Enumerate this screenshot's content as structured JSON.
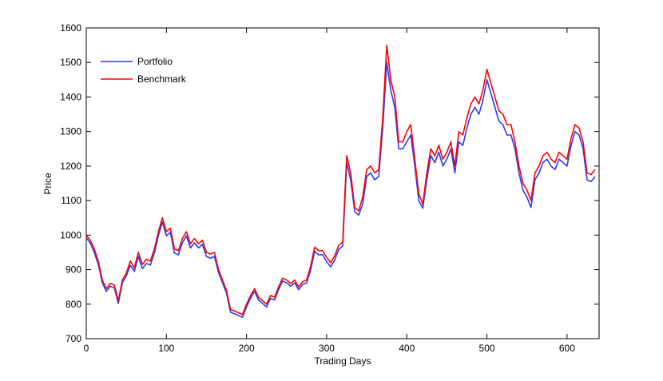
{
  "chart_data": {
    "type": "line",
    "xlabel": "Trading Days",
    "ylabel": "Price",
    "xlim": [
      0,
      640
    ],
    "ylim": [
      700,
      1600
    ],
    "xticks": [
      0,
      100,
      200,
      300,
      400,
      500,
      600
    ],
    "yticks": [
      700,
      800,
      900,
      1000,
      1100,
      1200,
      1300,
      1400,
      1500,
      1600
    ],
    "legend": "upper left",
    "x": [
      0,
      5,
      10,
      15,
      20,
      25,
      30,
      35,
      40,
      45,
      50,
      55,
      60,
      65,
      70,
      75,
      80,
      85,
      90,
      95,
      100,
      105,
      110,
      115,
      120,
      125,
      130,
      135,
      140,
      145,
      150,
      155,
      160,
      165,
      170,
      175,
      180,
      185,
      190,
      195,
      200,
      205,
      210,
      215,
      220,
      225,
      230,
      235,
      240,
      245,
      250,
      255,
      260,
      265,
      270,
      275,
      280,
      285,
      290,
      295,
      300,
      305,
      310,
      315,
      320,
      325,
      330,
      335,
      340,
      345,
      350,
      355,
      360,
      365,
      370,
      375,
      380,
      385,
      390,
      395,
      400,
      405,
      410,
      415,
      420,
      425,
      430,
      435,
      440,
      445,
      450,
      455,
      460,
      465,
      470,
      475,
      480,
      485,
      490,
      495,
      500,
      505,
      510,
      515,
      520,
      525,
      530,
      535,
      540,
      545,
      550,
      555,
      560,
      565,
      570,
      575,
      580,
      585,
      590,
      595,
      600,
      605,
      610,
      615,
      620,
      625,
      630,
      635
    ],
    "series": [
      {
        "name": "Portfolio",
        "color": "#2b3bf0",
        "values": [
          992,
          977,
          950,
          915,
          862,
          837,
          852,
          847,
          802,
          862,
          882,
          913,
          895,
          938,
          903,
          918,
          913,
          948,
          998,
          1038,
          998,
          1008,
          948,
          943,
          978,
          998,
          963,
          978,
          963,
          973,
          938,
          933,
          938,
          892,
          862,
          832,
          777,
          772,
          767,
          762,
          792,
          817,
          837,
          812,
          802,
          792,
          817,
          812,
          842,
          867,
          862,
          852,
          862,
          842,
          857,
          862,
          898,
          953,
          943,
          943,
          923,
          908,
          928,
          958,
          968,
          1210,
          1160,
          1068,
          1058,
          1090,
          1170,
          1180,
          1160,
          1170,
          1310,
          1500,
          1420,
          1370,
          1250,
          1250,
          1270,
          1290,
          1200,
          1100,
          1078,
          1160,
          1230,
          1210,
          1240,
          1200,
          1220,
          1250,
          1180,
          1270,
          1260,
          1310,
          1350,
          1370,
          1350,
          1390,
          1450,
          1410,
          1370,
          1330,
          1320,
          1290,
          1290,
          1250,
          1180,
          1130,
          1110,
          1080,
          1160,
          1180,
          1210,
          1220,
          1200,
          1190,
          1220,
          1210,
          1200,
          1260,
          1300,
          1290,
          1250,
          1160,
          1155,
          1170
        ]
      },
      {
        "name": "Benchmark",
        "color": "#ff0000",
        "values": [
          1000,
          985,
          960,
          925,
          870,
          845,
          860,
          855,
          810,
          870,
          890,
          925,
          905,
          950,
          915,
          930,
          925,
          960,
          1010,
          1050,
          1010,
          1020,
          960,
          955,
          990,
          1010,
          975,
          990,
          975,
          985,
          950,
          945,
          950,
          900,
          870,
          840,
          785,
          780,
          775,
          770,
          800,
          825,
          845,
          820,
          810,
          800,
          825,
          820,
          850,
          875,
          870,
          860,
          870,
          850,
          865,
          870,
          910,
          965,
          955,
          955,
          935,
          920,
          940,
          970,
          980,
          1230,
          1180,
          1080,
          1070,
          1110,
          1190,
          1200,
          1180,
          1190,
          1340,
          1550,
          1450,
          1400,
          1270,
          1270,
          1300,
          1320,
          1220,
          1120,
          1090,
          1180,
          1250,
          1230,
          1260,
          1220,
          1240,
          1270,
          1200,
          1300,
          1290,
          1340,
          1380,
          1400,
          1380,
          1420,
          1480,
          1440,
          1400,
          1360,
          1350,
          1320,
          1320,
          1270,
          1200,
          1150,
          1130,
          1100,
          1180,
          1200,
          1230,
          1240,
          1220,
          1210,
          1240,
          1230,
          1220,
          1280,
          1320,
          1310,
          1270,
          1180,
          1175,
          1190
        ]
      }
    ]
  }
}
